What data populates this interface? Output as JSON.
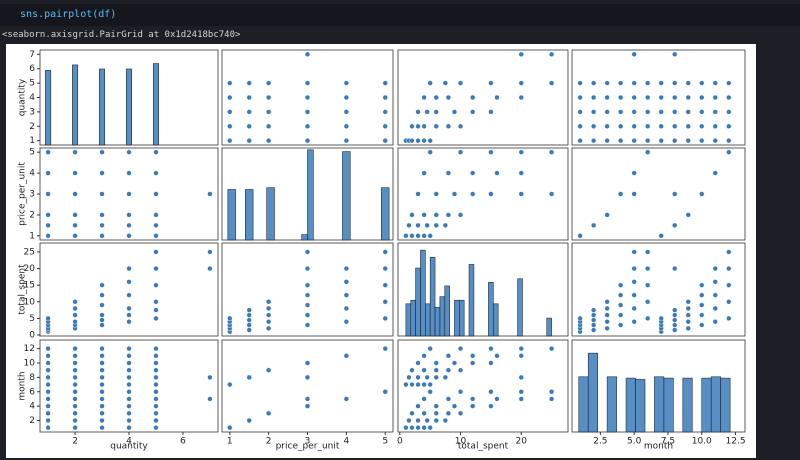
{
  "cell": {
    "code": "sns.pairplot(df)",
    "output": "<seaborn.axisgrid.PairGrid at 0x1d2418bc740>"
  },
  "chart_data": {
    "type": "pairplot",
    "color": "#3a7ab8",
    "variables": [
      {
        "name": "quantity",
        "lim": [
          0.7,
          7.3
        ],
        "xticks": [
          2,
          4,
          6
        ],
        "yticks": [
          1,
          2,
          3,
          4,
          5,
          6,
          7
        ],
        "hist": {
          "bins": [
            0.9,
            1.1,
            1.9,
            2.1,
            2.9,
            3.1,
            3.9,
            4.1,
            4.9,
            5.1
          ],
          "counts": [
            55,
            0,
            59,
            0,
            56,
            0,
            56,
            0,
            60
          ],
          "ylim": [
            0,
            70
          ]
        }
      },
      {
        "name": "price_per_unit",
        "lim": [
          0.8,
          5.2
        ],
        "xticks": [
          1,
          2,
          3,
          4,
          5
        ],
        "yticks": [
          1,
          2,
          3,
          4,
          5
        ],
        "hist": {
          "bins": [
            0.95,
            1.15,
            1.4,
            1.6,
            1.95,
            2.15,
            2.85,
            3.0,
            3.15,
            3.9,
            4.1,
            4.9,
            5.1
          ],
          "counts": [
            28,
            0,
            28,
            0,
            29,
            0,
            3,
            50,
            0,
            49,
            0,
            29
          ],
          "ylim": [
            0,
            51
          ]
        }
      },
      {
        "name": "total_spent",
        "lim": [
          -0.3,
          27.7
        ],
        "xticks": [
          0,
          10,
          20
        ],
        "yticks": [
          0,
          5,
          10,
          15,
          20,
          25
        ],
        "hist": {
          "bins": [
            1,
            1.8,
            2.6,
            3.4,
            4.2,
            5.0,
            5.8,
            6.6,
            7.4,
            8.2,
            9.0,
            9.8,
            10.6,
            11.4,
            12.2,
            13.0,
            13.8,
            14.6,
            15.4,
            16.2,
            17.0,
            17.8,
            18.6,
            19.4,
            20.2,
            21.0,
            21.8,
            22.6,
            23.4,
            24.2,
            25.0
          ],
          "counts": [
            4.5,
            5,
            9.5,
            12,
            4.5,
            11,
            4,
            5.5,
            7,
            0,
            5,
            5,
            0,
            10,
            0,
            0,
            0,
            7.5,
            4.5,
            0,
            0,
            0,
            0,
            8,
            0,
            0,
            0,
            0,
            0,
            2.5
          ],
          "ylim": [
            0,
            13
          ]
        }
      },
      {
        "name": "month",
        "lim": [
          0.4,
          13.2
        ],
        "xticks": [
          {
            "value": 2.5,
            "label": "2.5"
          },
          {
            "value": 5,
            "label": "5.0"
          },
          {
            "value": 7.5,
            "label": "7.5"
          },
          {
            "value": 10,
            "label": "10.0"
          },
          {
            "value": 12.5,
            "label": "12.5"
          }
        ],
        "yticks": [
          2,
          4,
          6,
          8,
          10,
          12
        ],
        "hist": {
          "bins": [
            0.9,
            1.6,
            2.3,
            3.0,
            3.7,
            4.4,
            5.1,
            5.8,
            6.5,
            7.2,
            7.9,
            8.6,
            9.3,
            10.0,
            10.7,
            11.4,
            12.1
          ],
          "counts": [
            4.2,
            6,
            0,
            4.2,
            0,
            4.1,
            4,
            0,
            4.2,
            4.1,
            0,
            4.1,
            0,
            4.1,
            4.2,
            4.1
          ],
          "ylim": [
            0,
            7
          ]
        }
      }
    ],
    "rows": [
      [
        1,
        1,
        1,
        1
      ],
      [
        1,
        1.5,
        1.5,
        2
      ],
      [
        1,
        2,
        2,
        3
      ],
      [
        1,
        3,
        3,
        4
      ],
      [
        1,
        4,
        4,
        5
      ],
      [
        1,
        5,
        5,
        6
      ],
      [
        1,
        1,
        1,
        7
      ],
      [
        1,
        1.5,
        1.5,
        8
      ],
      [
        1,
        2,
        2,
        9
      ],
      [
        1,
        3,
        3,
        10
      ],
      [
        1,
        4,
        4,
        11
      ],
      [
        1,
        5,
        5,
        12
      ],
      [
        2,
        1,
        2,
        1
      ],
      [
        2,
        1.5,
        3,
        2
      ],
      [
        2,
        2,
        4,
        3
      ],
      [
        2,
        3,
        6,
        4
      ],
      [
        2,
        4,
        8,
        5
      ],
      [
        2,
        5,
        10,
        6
      ],
      [
        2,
        1,
        2,
        7
      ],
      [
        2,
        1.5,
        3,
        8
      ],
      [
        2,
        2,
        4,
        9
      ],
      [
        2,
        3,
        6,
        10
      ],
      [
        2,
        4,
        8,
        11
      ],
      [
        2,
        5,
        10,
        12
      ],
      [
        3,
        1,
        3,
        1
      ],
      [
        3,
        1.5,
        4.5,
        2
      ],
      [
        3,
        2,
        6,
        3
      ],
      [
        3,
        3,
        9,
        4
      ],
      [
        3,
        4,
        12,
        5
      ],
      [
        3,
        5,
        15,
        6
      ],
      [
        3,
        1,
        3,
        7
      ],
      [
        3,
        1.5,
        4.5,
        8
      ],
      [
        3,
        2,
        6,
        9
      ],
      [
        3,
        3,
        9,
        10
      ],
      [
        3,
        4,
        12,
        11
      ],
      [
        3,
        5,
        15,
        12
      ],
      [
        4,
        1,
        4,
        1
      ],
      [
        4,
        1.5,
        6,
        2
      ],
      [
        4,
        2,
        8,
        3
      ],
      [
        4,
        3,
        12,
        4
      ],
      [
        4,
        4,
        16,
        5
      ],
      [
        4,
        5,
        20,
        6
      ],
      [
        4,
        1,
        4,
        7
      ],
      [
        4,
        1.5,
        6,
        8
      ],
      [
        4,
        2,
        8,
        9
      ],
      [
        4,
        3,
        12,
        10
      ],
      [
        4,
        4,
        16,
        11
      ],
      [
        4,
        5,
        20,
        12
      ],
      [
        5,
        1,
        5,
        1
      ],
      [
        5,
        1.5,
        7.5,
        2
      ],
      [
        5,
        2,
        10,
        3
      ],
      [
        5,
        3,
        15,
        4
      ],
      [
        5,
        4,
        20,
        5
      ],
      [
        5,
        5,
        25,
        6
      ],
      [
        5,
        1,
        5,
        7
      ],
      [
        5,
        1.5,
        7.5,
        8
      ],
      [
        5,
        2,
        10,
        9
      ],
      [
        5,
        3,
        15,
        10
      ],
      [
        5,
        4,
        20,
        11
      ],
      [
        5,
        5,
        25,
        12
      ],
      [
        7,
        3,
        20,
        8
      ],
      [
        7,
        3,
        25,
        5
      ]
    ]
  }
}
